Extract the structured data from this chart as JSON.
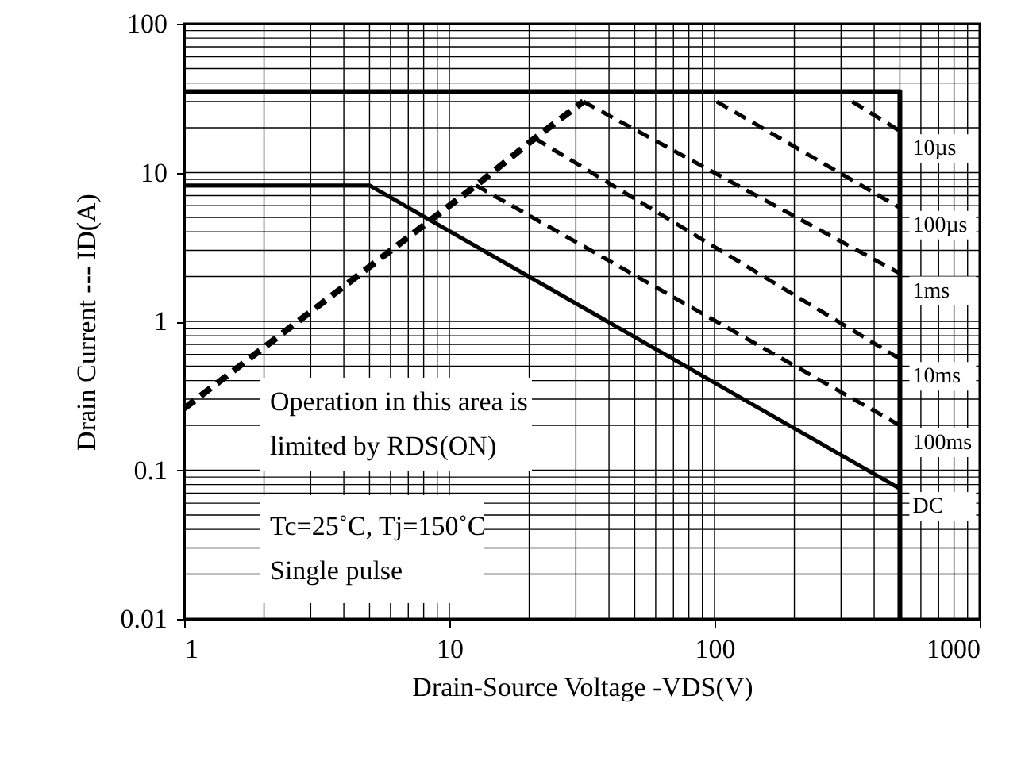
{
  "chart_data": {
    "type": "line",
    "xlabel": "Drain-Source Voltage -VDS(V)",
    "ylabel": "Drain Current --- ID(A)",
    "log": "xy",
    "grid": true,
    "xlim": [
      1,
      1000
    ],
    "xticks": [
      1,
      10,
      100,
      1000
    ],
    "ylim": [
      0.01,
      100
    ],
    "yticks": [
      0.01,
      0.1,
      1,
      10,
      100
    ],
    "series": [
      {
        "color": "#000000",
        "line_style": "solid",
        "x": [
          1,
          500,
          500
        ],
        "values": [
          35,
          35,
          0.01
        ]
      },
      {
        "color": "#000000",
        "line_style": "dashed",
        "x": [
          1,
          12.6,
          21,
          32
        ],
        "values": [
          0.26,
          8.2,
          17,
          30
        ]
      },
      {
        "name": "10µs",
        "color": "#000000",
        "line_style": "dashed",
        "x": [
          331,
          500
        ],
        "values": [
          30,
          19
        ]
      },
      {
        "name": "100µs",
        "color": "#000000",
        "line_style": "dashed",
        "x": [
          102,
          500
        ],
        "values": [
          30,
          5.8
        ]
      },
      {
        "name": "1ms",
        "color": "#000000",
        "line_style": "dashed",
        "x": [
          32,
          500
        ],
        "values": [
          30,
          2.1
        ]
      },
      {
        "name": "10ms",
        "color": "#000000",
        "line_style": "dashed",
        "x": [
          21,
          500
        ],
        "values": [
          17,
          0.56
        ]
      },
      {
        "name": "100ms",
        "color": "#000000",
        "line_style": "dashed",
        "x": [
          12.6,
          500
        ],
        "values": [
          8.2,
          0.2
        ]
      },
      {
        "name": "DC",
        "color": "#000000",
        "line_style": "solid",
        "x": [
          1,
          5,
          500
        ],
        "values": [
          8.2,
          8.2,
          0.075
        ]
      }
    ],
    "annotations": [
      "Operation in this area is\nlimited by RDS(ON)",
      "Tc=25˚C, Tj=150˚C\nSingle pulse"
    ]
  }
}
